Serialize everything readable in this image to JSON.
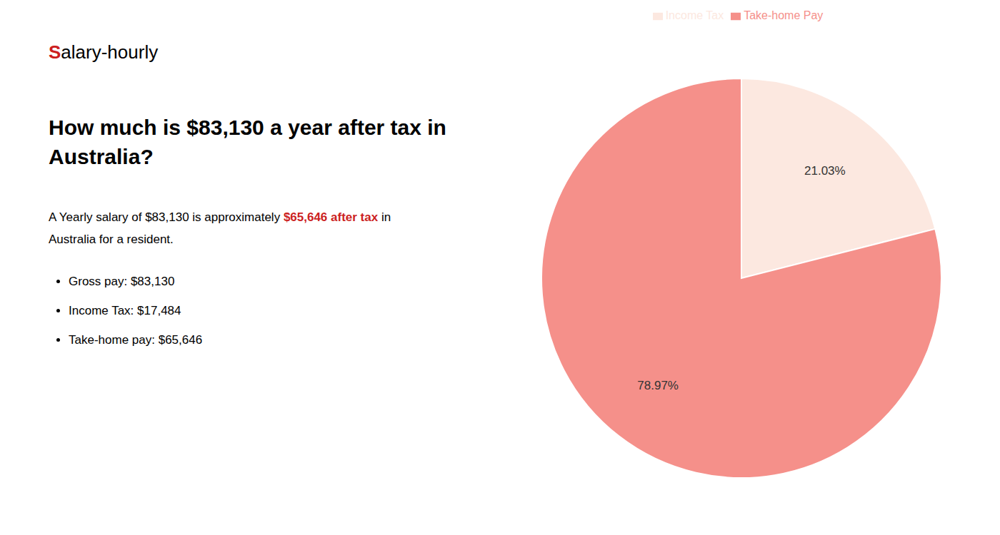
{
  "chart_data": {
    "type": "pie",
    "title": "How much is $83,130 a year after tax in\nAustralia?",
    "categories": [
      "Income Tax",
      "Take-home Pay"
    ],
    "values": [
      21.03,
      78.97
    ],
    "value_labels": [
      "21.03%",
      "78.97%"
    ],
    "colors": [
      "#fce8e0",
      "#f5908a"
    ],
    "data_labels": true,
    "legend": "top",
    "annotations": [
      [
        {
          "text": "S",
          "color": "#cc1f1f"
        },
        {
          "text": "alary-hourly"
        }
      ],
      [
        {
          "text": "A Yearly salary of $83,130 is approximately "
        },
        {
          "text": "$65,646 after tax",
          "color": "#cc1f1f"
        },
        {
          "text": " in"
        }
      ],
      [
        {
          "text": "Australia for a resident."
        }
      ],
      [
        {
          "text": "Gross pay: $83,130"
        }
      ],
      [
        {
          "text": "Income Tax: $17,484"
        }
      ],
      [
        {
          "text": "Take-home pay: $65,646"
        }
      ]
    ]
  }
}
